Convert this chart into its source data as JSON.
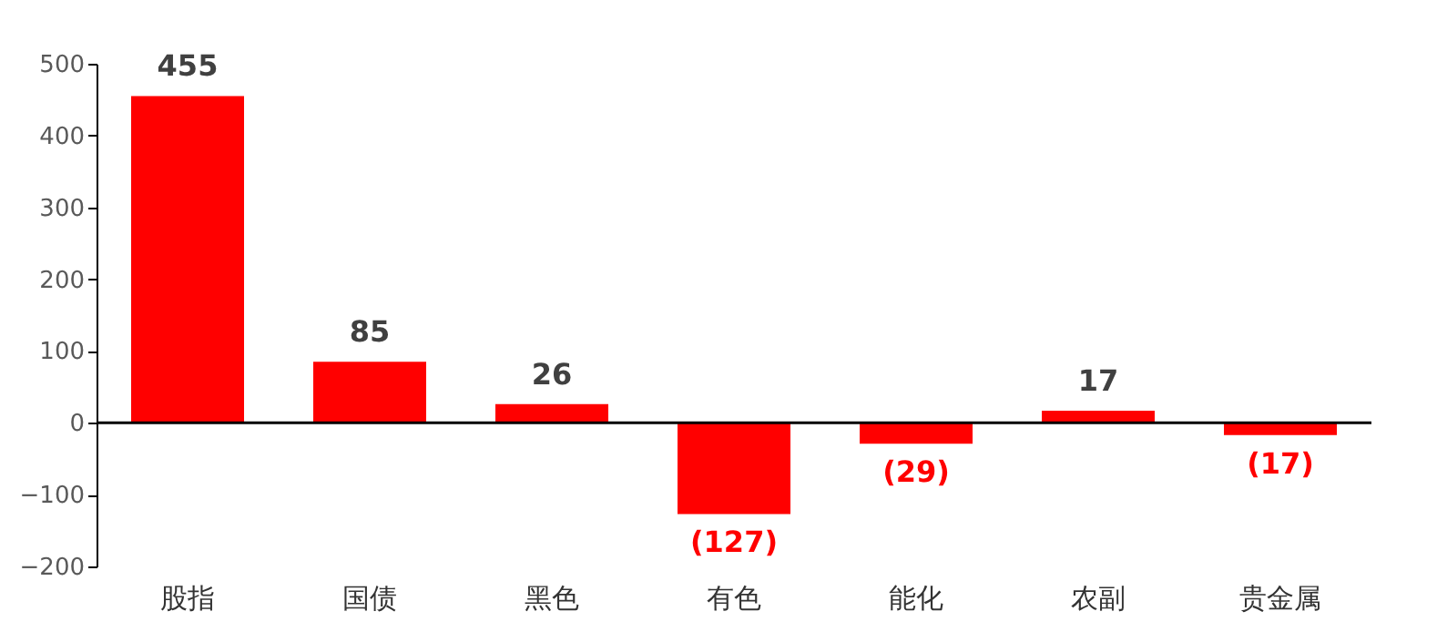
{
  "chart_data": {
    "type": "bar",
    "categories": [
      "股指",
      "国债",
      "黑色",
      "有色",
      "能化",
      "农副",
      "贵金属"
    ],
    "series": [
      {
        "color": "#ff0000",
        "values": [
          455,
          85,
          26,
          -127,
          -29,
          17,
          -17
        ],
        "value_labels": [
          "455",
          "85",
          "26",
          "(127)",
          "(29)",
          "17",
          "(17)"
        ]
      }
    ],
    "ylim": [
      -200,
      500
    ],
    "yticks": [
      -200,
      -100,
      0,
      100,
      200,
      300,
      400,
      500
    ],
    "ref_lines": [
      {
        "axis": "y",
        "value": 0,
        "color": "#000000"
      }
    ]
  }
}
